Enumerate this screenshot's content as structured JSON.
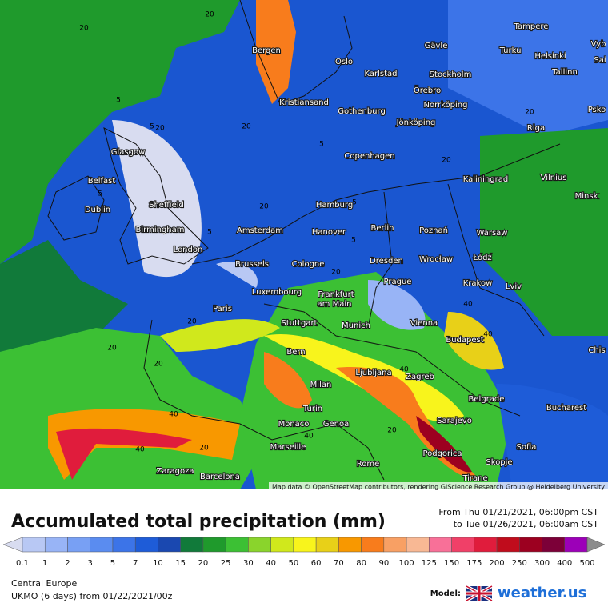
{
  "map": {
    "cities": [
      "Tampere",
      "Turku",
      "Helsinki",
      "Vyb",
      "Sai",
      "Tallinn",
      "Gävle",
      "Bergen",
      "Oslo",
      "Karlstad",
      "Stockholm",
      "Örebro",
      "Norrköping",
      "Kristiansand",
      "Gothenburg",
      "Jönköping",
      "Riga",
      "Psko",
      "Glasgow",
      "Copenhagen",
      "Kaliningrad",
      "Vilnius",
      "Belfast",
      "Minsk",
      "Dublin",
      "Sheffield",
      "Hamburg",
      "Amsterdam",
      "Hanover",
      "Berlin",
      "Poznań",
      "Warsaw",
      "Birmingham",
      "London",
      "Brussels",
      "Cologne",
      "Dresden",
      "Wrocław",
      "Łódź",
      "Prague",
      "Krakow",
      "Lviv",
      "Luxembourg",
      "Frankfurt",
      "am Main",
      "Paris",
      "Stuttgart",
      "Munich",
      "Vienna",
      "Budapest",
      "Bern",
      "Chis",
      "Ljubljana",
      "Zagreb",
      "Milan",
      "Belgrade",
      "Bucharest",
      "Turin",
      "Monaco",
      "Genoa",
      "Sarajevo",
      "Marseille",
      "Sofia",
      "Podgorica",
      "Skopje",
      "Zaragoza",
      "Barcelona",
      "Rome",
      "Tirane"
    ],
    "contour_labels": [
      "20",
      "20",
      "5",
      "20",
      "5",
      "5",
      "20",
      "5",
      "5",
      "20",
      "5",
      "20",
      "5",
      "20",
      "40",
      "20",
      "20",
      "40",
      "40",
      "40",
      "20",
      "20",
      "40",
      "20",
      "40",
      "20"
    ],
    "attribution": "Map data © OpenStreetMap contributors, rendering GIScience Research Group @ Heidelberg University"
  },
  "legend": {
    "title": "Accumulated total precipitation (mm)",
    "from": "From Thu 01/21/2021, 06:00pm CST",
    "to": "to Tue 01/26/2021, 06:00am CST",
    "ticks": [
      0.1,
      1,
      2,
      3,
      5,
      7,
      10,
      15,
      20,
      25,
      30,
      40,
      50,
      60,
      70,
      80,
      90,
      100,
      125,
      150,
      175,
      200,
      250,
      300,
      400,
      500
    ],
    "colors": [
      "#d8dcf0",
      "#b8c8f4",
      "#98b4f6",
      "#78a0f4",
      "#5a8cf0",
      "#3c74e8",
      "#1e5cd8",
      "#1a48b0",
      "#117a3a",
      "#1f9a2c",
      "#3cc034",
      "#8ad42c",
      "#d0e81c",
      "#f8f41c",
      "#e8d018",
      "#f89800",
      "#f87c1c",
      "#f8a064",
      "#f8b894",
      "#f87098",
      "#f04068",
      "#e01c3c",
      "#c00c1c",
      "#9c0020",
      "#7c0038",
      "#9c00b8",
      "#c43cf0",
      "#e070f0",
      "#f0a8f8",
      "#f8d8f8",
      "#efefef",
      "#c8c8c8",
      "#8c8c8c"
    ],
    "region": "Central Europe",
    "model": "UKMO (6 days)  from  01/22/2021/00z",
    "model_label": "Model:",
    "brand": "weather.us"
  }
}
